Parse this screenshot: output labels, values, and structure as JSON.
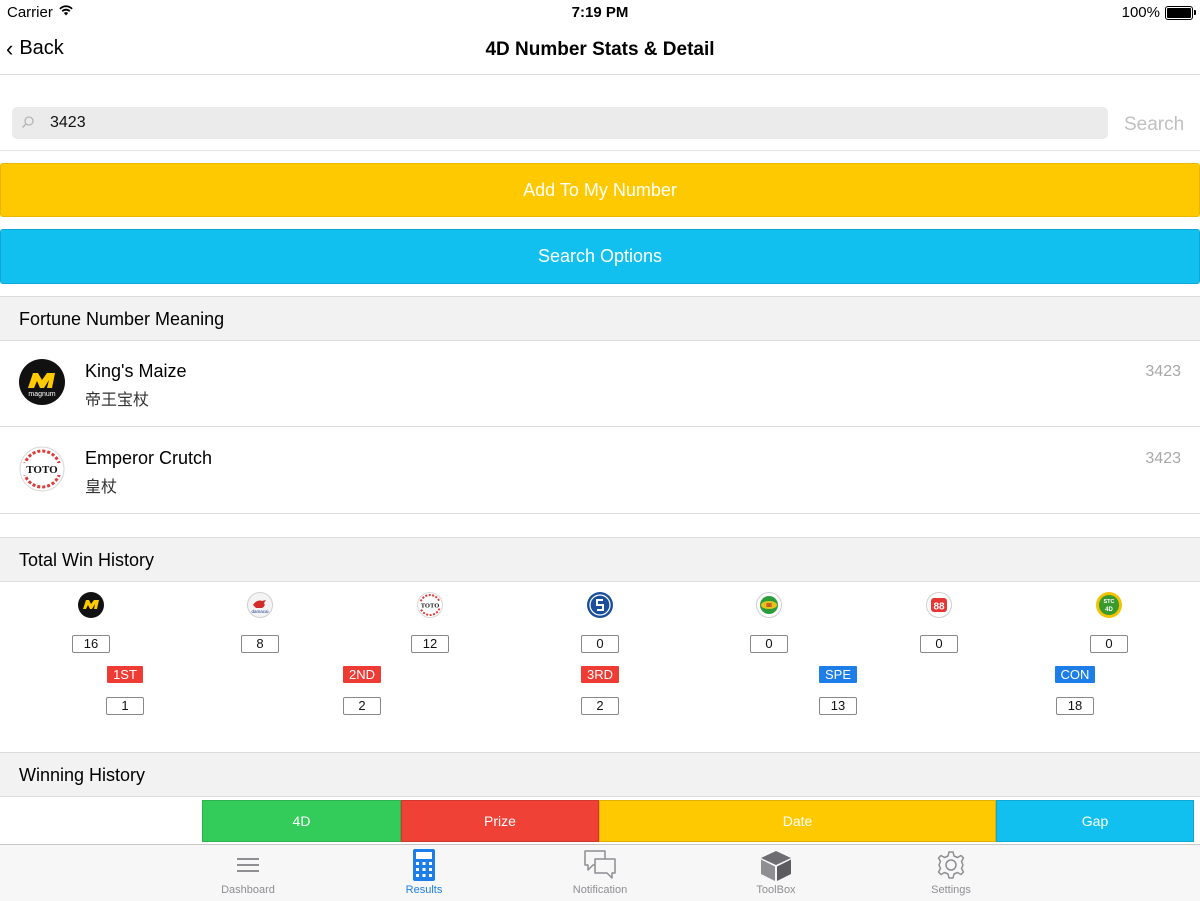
{
  "status_bar": {
    "carrier": "Carrier",
    "time": "7:19 PM",
    "battery": "100%"
  },
  "nav": {
    "back_label": "Back",
    "title": "4D Number Stats & Detail"
  },
  "search": {
    "value": "3423",
    "button_label": "Search"
  },
  "actions": {
    "add_label": "Add To My Number",
    "options_label": "Search Options"
  },
  "fortune": {
    "header": "Fortune Number Meaning",
    "items": [
      {
        "operator": "magnum",
        "name_en": "King's Maize",
        "name_cn": "帝王宝杖",
        "number": "3423"
      },
      {
        "operator": "sports-toto",
        "name_en": "Emperor Crutch",
        "name_cn": "皇杖",
        "number": "3423"
      }
    ]
  },
  "win_history": {
    "header": "Total Win History",
    "operators": [
      {
        "icon": "magnum",
        "count": "16"
      },
      {
        "icon": "damacai",
        "count": "8"
      },
      {
        "icon": "sports-toto",
        "count": "12"
      },
      {
        "icon": "singapore-pools",
        "count": "0"
      },
      {
        "icon": "sabah-88",
        "count": "0"
      },
      {
        "icon": "sandakan-turf-club-88",
        "count": "0"
      },
      {
        "icon": "stc-4d",
        "count": "0"
      }
    ],
    "prizes": [
      {
        "label": "1ST",
        "count": "1",
        "color": "#ee3b34"
      },
      {
        "label": "2ND",
        "count": "2",
        "color": "#ee3b34"
      },
      {
        "label": "3RD",
        "count": "2",
        "color": "#ee3b34"
      },
      {
        "label": "SPE",
        "count": "13",
        "color": "#1d7ee8"
      },
      {
        "label": "CON",
        "count": "18",
        "color": "#1d7ee8"
      }
    ]
  },
  "winning_history": {
    "header": "Winning History",
    "columns": [
      {
        "label": "4D",
        "color": "#33cc5a"
      },
      {
        "label": "Prize",
        "color": "#ef4135"
      },
      {
        "label": "Date",
        "color": "#ffc900"
      },
      {
        "label": "Gap",
        "color": "#12c0f0"
      }
    ]
  },
  "tabbar": {
    "items": [
      {
        "label": "Dashboard",
        "active": false
      },
      {
        "label": "Results",
        "active": true
      },
      {
        "label": "Notification",
        "active": false
      },
      {
        "label": "ToolBox",
        "active": false
      },
      {
        "label": "Settings",
        "active": false
      }
    ],
    "active_color": "#1d7ee8",
    "inactive_color": "#8e8e93"
  },
  "colors": {
    "add_button": "#ffc900",
    "options_button": "#12c0f0"
  }
}
